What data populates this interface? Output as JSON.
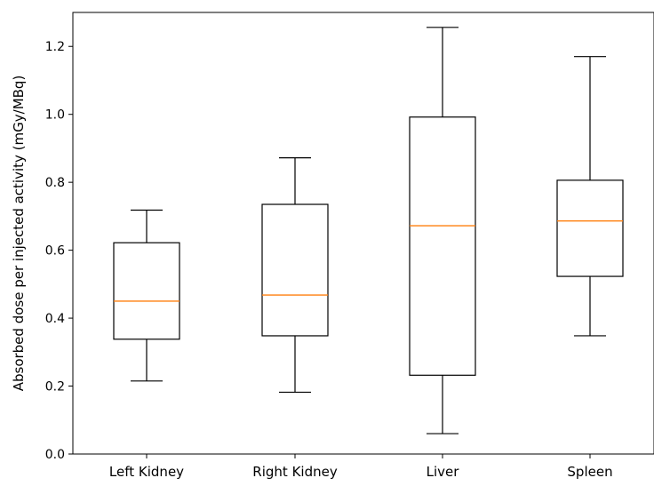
{
  "chart_data": {
    "type": "boxplot",
    "title": "",
    "xlabel": "",
    "ylabel": "Absorbed dose per injected activity (mGy/MBq)",
    "ylim": [
      0.0,
      1.3
    ],
    "yticks": [
      "0.0",
      "0.2",
      "0.4",
      "0.6",
      "0.8",
      "1.0",
      "1.2"
    ],
    "categories": [
      "Left Kidney",
      "Right Kidney",
      "Liver",
      "Spleen"
    ],
    "boxes": [
      {
        "category": "Left Kidney",
        "whisker_low": 0.215,
        "q1": 0.338,
        "median": 0.45,
        "q3": 0.622,
        "whisker_high": 0.718
      },
      {
        "category": "Right Kidney",
        "whisker_low": 0.182,
        "q1": 0.348,
        "median": 0.468,
        "q3": 0.735,
        "whisker_high": 0.872
      },
      {
        "category": "Liver",
        "whisker_low": 0.06,
        "q1": 0.232,
        "median": 0.672,
        "q3": 0.992,
        "whisker_high": 1.256
      },
      {
        "category": "Spleen",
        "whisker_low": 0.348,
        "q1": 0.523,
        "median": 0.686,
        "q3": 0.806,
        "whisker_high": 1.17
      }
    ],
    "grid": false,
    "colors": {
      "box": "#000000",
      "median": "#ff7f0e"
    }
  }
}
